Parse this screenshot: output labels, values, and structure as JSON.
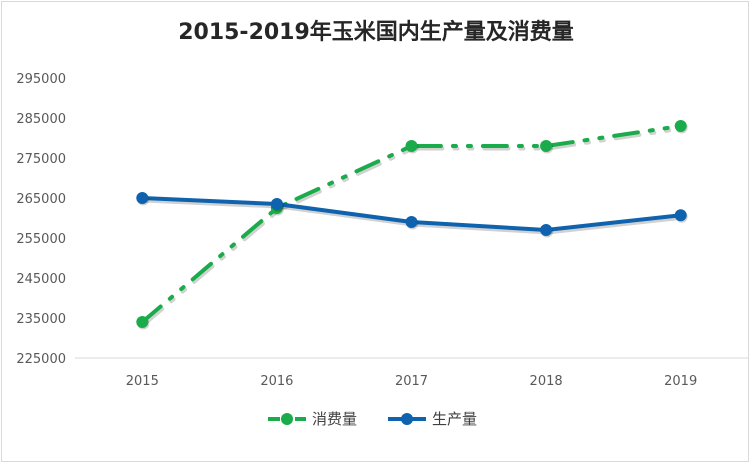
{
  "chart_data": {
    "type": "line",
    "title": "2015-2019年玉米国内生产量及消费量",
    "categories": [
      "2015",
      "2016",
      "2017",
      "2018",
      "2019"
    ],
    "ylim": [
      225000,
      295000
    ],
    "yticks": [
      "295000",
      "285000",
      "275000",
      "265000",
      "255000",
      "245000",
      "235000",
      "225000"
    ],
    "grid": false,
    "legend_position": "bottom",
    "series": [
      {
        "name": "消费量",
        "values": [
          234000,
          262500,
          278000,
          278000,
          283000
        ],
        "color": "#1aab4b",
        "style": "dash-dot-dot"
      },
      {
        "name": "生产量",
        "values": [
          265000,
          263500,
          259000,
          257000,
          260700
        ],
        "color": "#0f62ad",
        "style": "solid"
      }
    ]
  }
}
